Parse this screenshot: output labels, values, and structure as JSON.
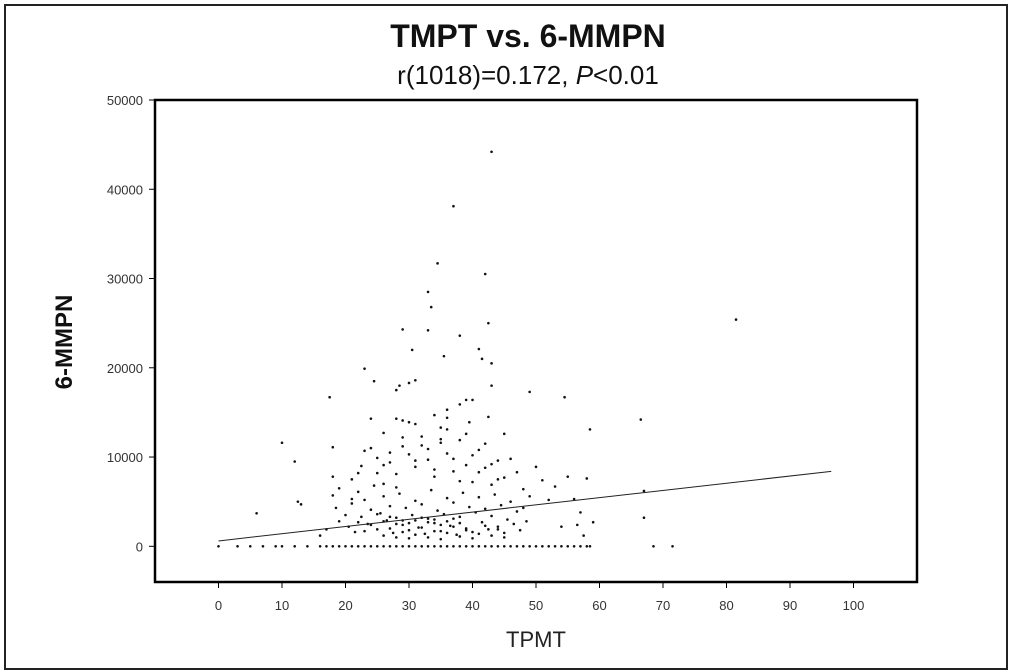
{
  "chart_data": {
    "type": "scatter",
    "title": "TMPT vs. 6-MMPN",
    "subtitle_prefix": "r(1018)=0.172, ",
    "subtitle_italic": "P",
    "subtitle_suffix": "<0.01",
    "xlabel": "TPMT",
    "ylabel": "6-MMPN",
    "xlim": [
      -10,
      110
    ],
    "ylim": [
      -4000,
      50000
    ],
    "x_ticks": [
      0,
      10,
      20,
      30,
      40,
      50,
      60,
      70,
      80,
      90,
      100
    ],
    "y_ticks": [
      0,
      10000,
      20000,
      30000,
      40000,
      50000
    ],
    "x_tick_labels": [
      "0",
      "10",
      "20",
      "30",
      "40",
      "50",
      "60",
      "70",
      "80",
      "90",
      "100"
    ],
    "y_tick_labels": [
      "0",
      "10000",
      "20000",
      "30000",
      "40000",
      "50000"
    ],
    "grid": false,
    "regression_line": {
      "x": [
        0,
        96.5
      ],
      "y": [
        600,
        8400
      ]
    },
    "series": [
      {
        "points": [
          [
            43,
            44200
          ],
          [
            37,
            38100
          ],
          [
            34.5,
            31700
          ],
          [
            42,
            30500
          ],
          [
            33,
            28500
          ],
          [
            33.5,
            26800
          ],
          [
            81.5,
            25400
          ],
          [
            42.5,
            25000
          ],
          [
            29,
            24300
          ],
          [
            33,
            24200
          ],
          [
            38,
            23600
          ],
          [
            41,
            22100
          ],
          [
            30.5,
            22000
          ],
          [
            35.5,
            21300
          ],
          [
            41.5,
            21000
          ],
          [
            43,
            20500
          ],
          [
            23,
            19900
          ],
          [
            31,
            18600
          ],
          [
            30,
            18300
          ],
          [
            28.5,
            18000
          ],
          [
            24.5,
            18500
          ],
          [
            43,
            18000
          ],
          [
            49,
            17300
          ],
          [
            28,
            17500
          ],
          [
            17.5,
            16700
          ],
          [
            39,
            16400
          ],
          [
            40,
            16400
          ],
          [
            54.5,
            16700
          ],
          [
            36,
            14400
          ],
          [
            42.5,
            14500
          ],
          [
            28,
            14300
          ],
          [
            24,
            14300
          ],
          [
            66.5,
            14200
          ],
          [
            39.5,
            13900
          ],
          [
            58.5,
            13100
          ],
          [
            45,
            12600
          ],
          [
            10,
            11600
          ],
          [
            18,
            11100
          ],
          [
            12,
            9500
          ],
          [
            6,
            3700
          ],
          [
            13,
            4700
          ],
          [
            12.5,
            5000
          ],
          [
            67,
            6200
          ],
          [
            67,
            3200
          ],
          [
            68.5,
            0
          ],
          [
            71.5,
            0
          ],
          [
            21,
            7500
          ],
          [
            22.5,
            9000
          ],
          [
            24,
            11000
          ],
          [
            25,
            8200
          ],
          [
            26,
            7000
          ],
          [
            27,
            9400
          ],
          [
            28,
            6600
          ],
          [
            29,
            12200
          ],
          [
            30,
            10300
          ],
          [
            31,
            8900
          ],
          [
            32,
            11300
          ],
          [
            33,
            9700
          ],
          [
            34,
            7800
          ],
          [
            35,
            13300
          ],
          [
            36,
            10400
          ],
          [
            37,
            8400
          ],
          [
            38,
            11900
          ],
          [
            39,
            9100
          ],
          [
            40,
            7200
          ],
          [
            41,
            10800
          ],
          [
            42,
            8800
          ],
          [
            43,
            6900
          ],
          [
            44,
            9600
          ],
          [
            45,
            7700
          ],
          [
            46,
            9800
          ],
          [
            47,
            8300
          ],
          [
            48,
            6400
          ],
          [
            49,
            5600
          ],
          [
            50,
            8900
          ],
          [
            51,
            7400
          ],
          [
            52,
            5200
          ],
          [
            53,
            6700
          ],
          [
            55,
            7800
          ],
          [
            56,
            5300
          ],
          [
            57,
            3800
          ],
          [
            58,
            7600
          ],
          [
            59,
            2700
          ],
          [
            54,
            2200
          ],
          [
            56.5,
            2400
          ],
          [
            57.5,
            1200
          ],
          [
            20,
            3500
          ],
          [
            20.5,
            2200
          ],
          [
            21,
            4800
          ],
          [
            21.5,
            1600
          ],
          [
            22,
            6100
          ],
          [
            22.5,
            3300
          ],
          [
            23,
            5200
          ],
          [
            23.5,
            2500
          ],
          [
            24,
            4100
          ],
          [
            24.5,
            6800
          ],
          [
            25,
            1900
          ],
          [
            25.5,
            3700
          ],
          [
            26,
            5600
          ],
          [
            26.5,
            2900
          ],
          [
            27,
            4500
          ],
          [
            27.5,
            1500
          ],
          [
            28,
            3200
          ],
          [
            28.5,
            5900
          ],
          [
            29,
            2400
          ],
          [
            29.5,
            4300
          ],
          [
            30,
            1800
          ],
          [
            30.5,
            3500
          ],
          [
            31,
            5100
          ],
          [
            31.5,
            2100
          ],
          [
            32,
            4700
          ],
          [
            32.5,
            1400
          ],
          [
            33,
            3100
          ],
          [
            33.5,
            6300
          ],
          [
            34,
            2600
          ],
          [
            34.5,
            4000
          ],
          [
            35,
            1700
          ],
          [
            35.5,
            3600
          ],
          [
            36,
            5400
          ],
          [
            36.5,
            2300
          ],
          [
            37,
            4900
          ],
          [
            37.5,
            1300
          ],
          [
            38,
            3300
          ],
          [
            38.5,
            6000
          ],
          [
            39,
            2000
          ],
          [
            39.5,
            4400
          ],
          [
            40,
            1600
          ],
          [
            40.5,
            3800
          ],
          [
            41,
            5500
          ],
          [
            41.5,
            2700
          ],
          [
            42,
            4200
          ],
          [
            42.5,
            1900
          ],
          [
            43,
            3400
          ],
          [
            43.5,
            5800
          ],
          [
            44,
            2200
          ],
          [
            44.5,
            4600
          ],
          [
            45,
            1500
          ],
          [
            45.5,
            3000
          ],
          [
            46,
            5000
          ],
          [
            46.5,
            2500
          ],
          [
            47,
            3900
          ],
          [
            47.5,
            1800
          ],
          [
            48,
            4300
          ],
          [
            48.5,
            2800
          ],
          [
            19,
            2800
          ],
          [
            18.5,
            4300
          ],
          [
            17,
            1900
          ],
          [
            16,
            1200
          ],
          [
            25,
            9900
          ],
          [
            26,
            12700
          ],
          [
            27,
            10500
          ],
          [
            28,
            8100
          ],
          [
            29,
            11200
          ],
          [
            30,
            13900
          ],
          [
            31,
            9600
          ],
          [
            32,
            12300
          ],
          [
            33,
            10900
          ],
          [
            34,
            8600
          ],
          [
            35,
            11600
          ],
          [
            36,
            13100
          ],
          [
            37,
            9800
          ],
          [
            38,
            7300
          ],
          [
            39,
            12600
          ],
          [
            40,
            10200
          ],
          [
            41,
            8300
          ],
          [
            42,
            11500
          ],
          [
            43,
            9200
          ],
          [
            44,
            7500
          ],
          [
            34,
            14700
          ],
          [
            35,
            12000
          ],
          [
            36,
            15300
          ],
          [
            38,
            15900
          ],
          [
            31,
            13700
          ],
          [
            29,
            14100
          ],
          [
            26,
            9100
          ],
          [
            23,
            10700
          ],
          [
            22,
            8200
          ],
          [
            21,
            5300
          ],
          [
            19,
            6500
          ],
          [
            18,
            7800
          ],
          [
            18,
            5700
          ],
          [
            26,
            1200
          ],
          [
            27,
            2000
          ],
          [
            28,
            1000
          ],
          [
            29,
            1600
          ],
          [
            30,
            900
          ],
          [
            31,
            1300
          ],
          [
            32,
            2100
          ],
          [
            33,
            1000
          ],
          [
            34,
            1700
          ],
          [
            35,
            800
          ],
          [
            36,
            1500
          ],
          [
            37,
            2200
          ],
          [
            38,
            1100
          ],
          [
            39,
            1800
          ],
          [
            40,
            900
          ],
          [
            41,
            1400
          ],
          [
            42,
            2300
          ],
          [
            43,
            1200
          ],
          [
            44,
            1900
          ],
          [
            45,
            1000
          ],
          [
            30,
            2600
          ],
          [
            31,
            2900
          ],
          [
            32,
            3200
          ],
          [
            33,
            2700
          ],
          [
            34,
            3000
          ],
          [
            35,
            2400
          ],
          [
            36,
            2800
          ],
          [
            37,
            3100
          ],
          [
            38,
            2600
          ],
          [
            28,
            2500
          ],
          [
            29,
            2900
          ],
          [
            27,
            3300
          ],
          [
            26,
            2800
          ],
          [
            25,
            3600
          ],
          [
            24,
            2400
          ],
          [
            23,
            1700
          ],
          [
            22,
            2700
          ],
          [
            10,
            0
          ],
          [
            12,
            0
          ],
          [
            14,
            0
          ],
          [
            16,
            0
          ],
          [
            17,
            0
          ],
          [
            18,
            0
          ],
          [
            19,
            0
          ],
          [
            20,
            0
          ],
          [
            21,
            0
          ],
          [
            22,
            0
          ],
          [
            23,
            0
          ],
          [
            24,
            0
          ],
          [
            25,
            0
          ],
          [
            26,
            0
          ],
          [
            27,
            0
          ],
          [
            28,
            0
          ],
          [
            29,
            0
          ],
          [
            30,
            0
          ],
          [
            31,
            0
          ],
          [
            32,
            0
          ],
          [
            33,
            0
          ],
          [
            34,
            0
          ],
          [
            35,
            0
          ],
          [
            36,
            0
          ],
          [
            37,
            0
          ],
          [
            38,
            0
          ],
          [
            39,
            0
          ],
          [
            40,
            0
          ],
          [
            41,
            0
          ],
          [
            42,
            0
          ],
          [
            43,
            0
          ],
          [
            44,
            0
          ],
          [
            45,
            0
          ],
          [
            46,
            0
          ],
          [
            47,
            0
          ],
          [
            48,
            0
          ],
          [
            49,
            0
          ],
          [
            50,
            0
          ],
          [
            51,
            0
          ],
          [
            52,
            0
          ],
          [
            53,
            0
          ],
          [
            54,
            0
          ],
          [
            55,
            0
          ],
          [
            56,
            0
          ],
          [
            57,
            0
          ],
          [
            58,
            0
          ],
          [
            58.5,
            0
          ],
          [
            0,
            0
          ],
          [
            3,
            0
          ],
          [
            5,
            0
          ],
          [
            7,
            0
          ],
          [
            9,
            0
          ]
        ]
      }
    ]
  }
}
